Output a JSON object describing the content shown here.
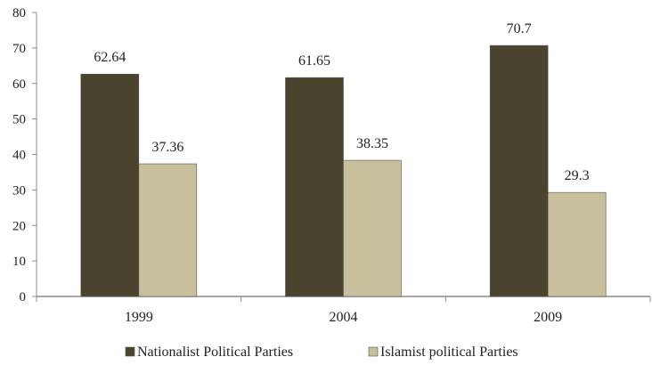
{
  "chart_data": {
    "type": "bar",
    "categories": [
      "1999",
      "2004",
      "2009"
    ],
    "series": [
      {
        "name": "Nationalist Political Parties",
        "values": [
          62.64,
          61.65,
          70.7
        ],
        "color": "#4a432e"
      },
      {
        "name": "Islamist political Parties",
        "values": [
          37.36,
          38.35,
          29.3
        ],
        "color": "#c8bf9c"
      }
    ],
    "data_labels": [
      [
        "62.64",
        "61.65",
        "70.7"
      ],
      [
        "37.36",
        "38.35",
        "29.3"
      ]
    ],
    "ylim": [
      0,
      80
    ],
    "yticks": [
      "0",
      "10",
      "20",
      "30",
      "40",
      "50",
      "60",
      "70",
      "80"
    ],
    "title": "",
    "xlabel": "",
    "ylabel": "",
    "legend_position": "bottom",
    "grid": false
  }
}
